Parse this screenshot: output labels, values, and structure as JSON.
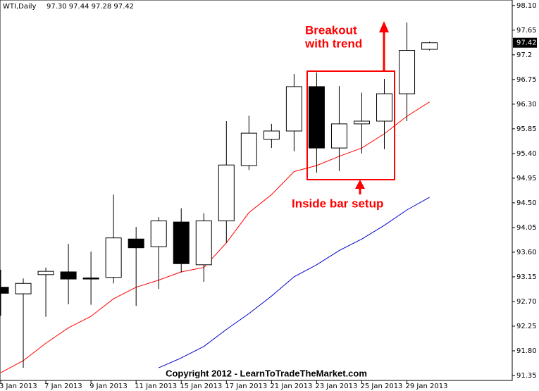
{
  "chart_data": {
    "type": "candlestick",
    "title": "WTI,Daily",
    "ohlc_label": "97.30 97.44 97.28 97.42",
    "categories": [
      "3 Jan 2013",
      null,
      "7 Jan 2013",
      null,
      "9 Jan 2013",
      null,
      "11 Jan 2013",
      null,
      "15 Jan 2013",
      null,
      "17 Jan 2013",
      null,
      "21 Jan 2013",
      null,
      "23 Jan 2013",
      null,
      "25 Jan 2013",
      null,
      "29 Jan 2013",
      null
    ],
    "open": [
      92.96,
      92.84,
      93.19,
      93.24,
      93.13,
      93.14,
      93.84,
      93.7,
      94.15,
      93.37,
      94.17,
      95.18,
      95.66,
      95.81,
      96.62,
      95.5,
      95.94,
      95.99,
      96.49,
      97.3
    ],
    "high": [
      93.28,
      93.12,
      93.32,
      93.75,
      93.61,
      94.65,
      94.06,
      94.24,
      94.4,
      94.31,
      95.99,
      96.09,
      95.94,
      96.85,
      96.88,
      96.63,
      96.51,
      96.76,
      97.79,
      97.44
    ],
    "low": [
      92.44,
      91.49,
      92.42,
      92.65,
      92.64,
      93.03,
      92.62,
      92.93,
      93.23,
      93.06,
      93.77,
      95.1,
      95.5,
      95.44,
      95.05,
      95.08,
      95.4,
      95.48,
      95.99,
      97.28
    ],
    "close": [
      92.85,
      93.03,
      93.25,
      93.11,
      93.11,
      93.86,
      93.68,
      94.17,
      93.39,
      94.17,
      95.19,
      95.77,
      95.81,
      96.62,
      95.5,
      95.94,
      95.99,
      96.49,
      97.28,
      97.42
    ],
    "up_color": "#ffffff",
    "down_color": "#000000",
    "overlays": [
      {
        "color": "#ff0000",
        "values": [
          91.4,
          91.62,
          91.94,
          92.22,
          92.43,
          92.75,
          92.96,
          93.09,
          93.24,
          93.32,
          93.77,
          94.32,
          94.65,
          95.07,
          95.18,
          95.35,
          95.5,
          95.76,
          96.08,
          96.34
        ]
      },
      {
        "color": "#0000cc",
        "values": [
          null,
          null,
          null,
          null,
          null,
          null,
          null,
          91.49,
          91.67,
          91.88,
          92.19,
          92.48,
          92.8,
          93.15,
          93.37,
          93.63,
          93.84,
          94.09,
          94.37,
          94.6
        ]
      }
    ],
    "ylim": [
      91.26,
      98.2
    ],
    "yticks": [
      {
        "value": 98.1,
        "label": "98.10"
      },
      97.65,
      97.2,
      96.75,
      {
        "value": 96.3,
        "label": "96.30"
      },
      95.85,
      {
        "value": 95.4,
        "label": "95.40"
      },
      94.95,
      {
        "value": 94.5,
        "label": "94.50"
      },
      94.05,
      {
        "value": 93.6,
        "label": "93.60"
      },
      93.15,
      {
        "value": 92.7,
        "label": "92.70"
      },
      92.25,
      {
        "value": 91.8,
        "label": "91.80"
      },
      91.35
    ],
    "last_price": 97.42,
    "breakout_label": [
      "Breakout",
      "with trend"
    ],
    "setup_label": "Inside bar setup",
    "copyright": "Copyright 2012 - LearnToTradeTheMarket.com"
  }
}
